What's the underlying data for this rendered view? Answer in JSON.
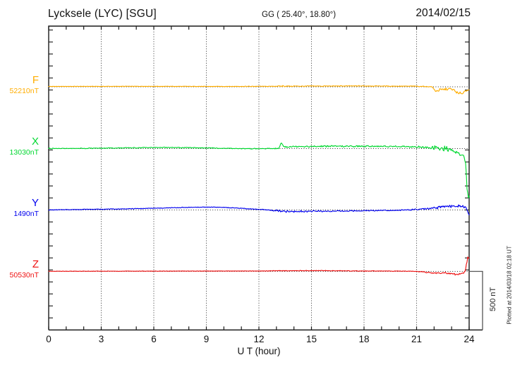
{
  "chart_data": {
    "type": "line",
    "title": "Lycksele (LYC)  [SGU]",
    "subtitle": "GG ( 25.40°,  18.80°)",
    "date": "2014/02/15",
    "xlabel": "U T (hour)",
    "x_range": [
      0,
      24
    ],
    "x_major_ticks": [
      0,
      3,
      6,
      9,
      12,
      15,
      18,
      21,
      24
    ],
    "x_minor_step_hours": 1,
    "y_minor_tick_nT": 100,
    "y_scale_bar": {
      "label": "500 nT",
      "nT": 500
    },
    "plotted_note": "Plotted at 2014/03/18 02:18 UT",
    "grid": "dotted vertical every 3 hours, dotted horizontal at each trace baseline",
    "series": [
      {
        "name": "F",
        "baseline_label": "52210nT",
        "baseline_nT": 52210,
        "color": "#FFAD00",
        "points": [
          [
            0,
            3,
            2
          ],
          [
            5,
            4,
            2
          ],
          [
            10,
            3,
            2
          ],
          [
            12.8,
            4,
            3
          ],
          [
            13.1,
            5,
            4
          ],
          [
            13.3,
            7,
            11
          ],
          [
            13.6,
            5,
            4
          ],
          [
            15,
            6,
            4
          ],
          [
            18,
            7,
            4
          ],
          [
            20.5,
            5,
            4
          ],
          [
            21.5,
            3,
            4
          ],
          [
            21.9,
            0,
            5
          ],
          [
            22.05,
            -34,
            9
          ],
          [
            22.4,
            -24,
            12
          ],
          [
            22.9,
            -17,
            10
          ],
          [
            23.15,
            -30,
            10
          ],
          [
            23.4,
            -60,
            14
          ],
          [
            23.6,
            -52,
            14
          ],
          [
            23.8,
            -30,
            10
          ],
          [
            23.92,
            -26,
            7
          ],
          [
            24,
            -27,
            4
          ]
        ]
      },
      {
        "name": "X",
        "baseline_label": "13030nT",
        "baseline_nT": 13030,
        "color": "#00D830",
        "points": [
          [
            0,
            2,
            4
          ],
          [
            1,
            0,
            4
          ],
          [
            2,
            2,
            4
          ],
          [
            4,
            5,
            4
          ],
          [
            6,
            9,
            4
          ],
          [
            8,
            8,
            4
          ],
          [
            10,
            2,
            4
          ],
          [
            11.5,
            -1,
            4
          ],
          [
            12.8,
            0,
            5
          ],
          [
            13.15,
            2,
            4
          ],
          [
            13.28,
            50,
            9
          ],
          [
            13.42,
            18,
            9
          ],
          [
            13.6,
            15,
            7
          ],
          [
            14.2,
            18,
            7
          ],
          [
            15,
            17,
            8
          ],
          [
            16,
            20,
            7
          ],
          [
            17,
            18,
            7
          ],
          [
            18,
            20,
            8
          ],
          [
            19,
            19,
            7
          ],
          [
            20,
            18,
            7
          ],
          [
            21,
            14,
            8
          ],
          [
            21.6,
            8,
            10
          ],
          [
            21.95,
            4,
            22
          ],
          [
            22.3,
            -4,
            26
          ],
          [
            22.7,
            2,
            22
          ],
          [
            23,
            -10,
            20
          ],
          [
            23.3,
            -36,
            18
          ],
          [
            23.5,
            -50,
            13
          ],
          [
            23.7,
            -60,
            10
          ],
          [
            23.8,
            -130,
            16
          ],
          [
            23.88,
            -330,
            24
          ],
          [
            23.95,
            -412,
            10
          ],
          [
            24,
            -402,
            7
          ]
        ]
      },
      {
        "name": "Y",
        "baseline_label": "1490nT",
        "baseline_nT": 1490,
        "color": "#0000EE",
        "points": [
          [
            0,
            0,
            3
          ],
          [
            2,
            5,
            3
          ],
          [
            4,
            8,
            3
          ],
          [
            6,
            14,
            3
          ],
          [
            8,
            22,
            3
          ],
          [
            9.5,
            24,
            3
          ],
          [
            11,
            14,
            3
          ],
          [
            12.3,
            2,
            4
          ],
          [
            13,
            -6,
            9
          ],
          [
            13.5,
            -14,
            10
          ],
          [
            14.2,
            -12,
            8
          ],
          [
            15,
            -10,
            8
          ],
          [
            16,
            -10,
            7
          ],
          [
            17,
            -8,
            6
          ],
          [
            18,
            -6,
            5
          ],
          [
            19,
            -4,
            5
          ],
          [
            20,
            -2,
            5
          ],
          [
            21,
            4,
            6
          ],
          [
            21.7,
            10,
            10
          ],
          [
            22.3,
            22,
            12
          ],
          [
            22.8,
            30,
            14
          ],
          [
            23.2,
            32,
            14
          ],
          [
            23.6,
            28,
            12
          ],
          [
            23.85,
            18,
            8
          ],
          [
            23.95,
            -25,
            8
          ],
          [
            24,
            -40,
            4
          ]
        ]
      },
      {
        "name": "Z",
        "baseline_label": "50530nT",
        "baseline_nT": 50530,
        "color": "#EE1111",
        "points": [
          [
            0,
            1,
            1.5
          ],
          [
            6,
            2,
            1.5
          ],
          [
            12,
            3,
            2
          ],
          [
            13.3,
            5,
            5
          ],
          [
            14,
            6,
            3
          ],
          [
            16,
            6,
            3
          ],
          [
            18,
            3,
            3
          ],
          [
            20,
            2,
            3
          ],
          [
            21,
            0,
            3
          ],
          [
            21.5,
            -8,
            6
          ],
          [
            22,
            -15,
            8
          ],
          [
            22.5,
            -12,
            8
          ],
          [
            23,
            -18,
            10
          ],
          [
            23.3,
            -28,
            10
          ],
          [
            23.5,
            -20,
            10
          ],
          [
            23.7,
            -11,
            8
          ],
          [
            23.78,
            0,
            6
          ],
          [
            23.85,
            60,
            20
          ],
          [
            23.92,
            112,
            10
          ],
          [
            24,
            108,
            5
          ]
        ]
      }
    ]
  }
}
